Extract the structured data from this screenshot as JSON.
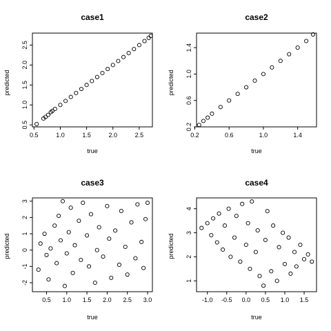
{
  "chart_data": [
    {
      "type": "scatter",
      "title": "case1",
      "xlabel": "true",
      "ylabel": "predicted",
      "xlim": [
        0.47,
        2.75
      ],
      "ylim": [
        0.45,
        2.8
      ],
      "xticks": [
        "0.5",
        "1.0",
        "1.5",
        "2.0",
        "2.5"
      ],
      "yticks": [
        "0.5",
        "1.0",
        "1.5",
        "2.0",
        "2.5"
      ],
      "grid": false,
      "points": [
        {
          "x": 0.55,
          "y": 0.52
        },
        {
          "x": 0.68,
          "y": 0.66
        },
        {
          "x": 0.72,
          "y": 0.7
        },
        {
          "x": 0.77,
          "y": 0.75
        },
        {
          "x": 0.82,
          "y": 0.82
        },
        {
          "x": 0.85,
          "y": 0.85
        },
        {
          "x": 0.9,
          "y": 0.9
        },
        {
          "x": 1.0,
          "y": 1.0
        },
        {
          "x": 1.1,
          "y": 1.1
        },
        {
          "x": 1.2,
          "y": 1.2
        },
        {
          "x": 1.3,
          "y": 1.3
        },
        {
          "x": 1.4,
          "y": 1.4
        },
        {
          "x": 1.5,
          "y": 1.5
        },
        {
          "x": 1.6,
          "y": 1.6
        },
        {
          "x": 1.7,
          "y": 1.7
        },
        {
          "x": 1.8,
          "y": 1.8
        },
        {
          "x": 1.9,
          "y": 1.9
        },
        {
          "x": 2.0,
          "y": 2.0
        },
        {
          "x": 2.1,
          "y": 2.1
        },
        {
          "x": 2.2,
          "y": 2.2
        },
        {
          "x": 2.3,
          "y": 2.3
        },
        {
          "x": 2.4,
          "y": 2.4
        },
        {
          "x": 2.5,
          "y": 2.5
        },
        {
          "x": 2.6,
          "y": 2.6
        },
        {
          "x": 2.68,
          "y": 2.68
        },
        {
          "x": 2.72,
          "y": 2.73
        }
      ]
    },
    {
      "type": "scatter",
      "title": "case2",
      "xlabel": "true",
      "ylabel": "predicted",
      "xlim": [
        0.22,
        1.62
      ],
      "ylim": [
        0.2,
        1.62
      ],
      "xticks": [
        "0.2",
        "0.6",
        "1.0",
        "1.4"
      ],
      "yticks": [
        "0.2",
        "0.6",
        "1.0",
        "1.4"
      ],
      "grid": false,
      "points": [
        {
          "x": 0.25,
          "y": 0.23
        },
        {
          "x": 0.3,
          "y": 0.29
        },
        {
          "x": 0.35,
          "y": 0.34
        },
        {
          "x": 0.4,
          "y": 0.4
        },
        {
          "x": 0.5,
          "y": 0.5
        },
        {
          "x": 0.6,
          "y": 0.6
        },
        {
          "x": 0.7,
          "y": 0.7
        },
        {
          "x": 0.8,
          "y": 0.8
        },
        {
          "x": 0.9,
          "y": 0.9
        },
        {
          "x": 1.0,
          "y": 1.0
        },
        {
          "x": 1.1,
          "y": 1.1
        },
        {
          "x": 1.2,
          "y": 1.2
        },
        {
          "x": 1.3,
          "y": 1.3
        },
        {
          "x": 1.4,
          "y": 1.4
        },
        {
          "x": 1.5,
          "y": 1.5
        },
        {
          "x": 1.58,
          "y": 1.6
        }
      ]
    },
    {
      "type": "scatter",
      "title": "case3",
      "xlabel": "true",
      "ylabel": "predicted",
      "xlim": [
        0.15,
        3.12
      ],
      "ylim": [
        -2.55,
        3.2
      ],
      "xticks": [
        "0.5",
        "1.0",
        "1.5",
        "2.0",
        "2.5",
        "3.0"
      ],
      "yticks": [
        "-2",
        "-1",
        "0",
        "1",
        "2",
        "3"
      ],
      "grid": false,
      "points": [
        {
          "x": 0.3,
          "y": -1.2
        },
        {
          "x": 0.35,
          "y": 0.4
        },
        {
          "x": 0.45,
          "y": 1.0
        },
        {
          "x": 0.5,
          "y": -0.3
        },
        {
          "x": 0.55,
          "y": -1.8
        },
        {
          "x": 0.6,
          "y": 0.1
        },
        {
          "x": 0.7,
          "y": 1.5
        },
        {
          "x": 0.75,
          "y": -0.8
        },
        {
          "x": 0.8,
          "y": 2.1
        },
        {
          "x": 0.85,
          "y": 0.6
        },
        {
          "x": 0.9,
          "y": 3.0
        },
        {
          "x": 0.95,
          "y": -2.2
        },
        {
          "x": 1.0,
          "y": -0.2
        },
        {
          "x": 1.05,
          "y": 1.1
        },
        {
          "x": 1.1,
          "y": 2.6
        },
        {
          "x": 1.15,
          "y": -1.4
        },
        {
          "x": 1.2,
          "y": 0.3
        },
        {
          "x": 1.3,
          "y": 1.8
        },
        {
          "x": 1.35,
          "y": -0.6
        },
        {
          "x": 1.4,
          "y": 2.9
        },
        {
          "x": 1.5,
          "y": 0.9
        },
        {
          "x": 1.55,
          "y": -1.0
        },
        {
          "x": 1.6,
          "y": 2.2
        },
        {
          "x": 1.7,
          "y": -2.0
        },
        {
          "x": 1.75,
          "y": 0.0
        },
        {
          "x": 1.8,
          "y": 1.4
        },
        {
          "x": 1.9,
          "y": -0.4
        },
        {
          "x": 2.0,
          "y": 2.7
        },
        {
          "x": 2.05,
          "y": 0.7
        },
        {
          "x": 2.1,
          "y": -1.7
        },
        {
          "x": 2.2,
          "y": 1.2
        },
        {
          "x": 2.3,
          "y": -0.9
        },
        {
          "x": 2.35,
          "y": 2.4
        },
        {
          "x": 2.45,
          "y": 0.2
        },
        {
          "x": 2.5,
          "y": -1.5
        },
        {
          "x": 2.6,
          "y": 1.7
        },
        {
          "x": 2.7,
          "y": -0.5
        },
        {
          "x": 2.75,
          "y": 2.8
        },
        {
          "x": 2.85,
          "y": 0.5
        },
        {
          "x": 2.9,
          "y": -1.1
        },
        {
          "x": 2.95,
          "y": 1.9
        },
        {
          "x": 3.0,
          "y": 2.9
        }
      ]
    },
    {
      "type": "scatter",
      "title": "case4",
      "xlabel": "true",
      "ylabel": "predicted",
      "xlim": [
        -1.28,
        1.82
      ],
      "ylim": [
        0.55,
        4.45
      ],
      "xticks": [
        "-1.0",
        "-0.5",
        "0.0",
        "0.5",
        "1.0",
        "1.5"
      ],
      "yticks": [
        "1",
        "2",
        "3",
        "4"
      ],
      "grid": false,
      "points": [
        {
          "x": -1.15,
          "y": 3.2
        },
        {
          "x": -1.0,
          "y": 3.4
        },
        {
          "x": -0.9,
          "y": 2.9
        },
        {
          "x": -0.85,
          "y": 3.6
        },
        {
          "x": -0.75,
          "y": 2.6
        },
        {
          "x": -0.7,
          "y": 3.8
        },
        {
          "x": -0.6,
          "y": 2.3
        },
        {
          "x": -0.55,
          "y": 3.3
        },
        {
          "x": -0.45,
          "y": 4.0
        },
        {
          "x": -0.4,
          "y": 2.0
        },
        {
          "x": -0.3,
          "y": 2.8
        },
        {
          "x": -0.25,
          "y": 3.7
        },
        {
          "x": -0.15,
          "y": 1.8
        },
        {
          "x": -0.1,
          "y": 4.2
        },
        {
          "x": 0.0,
          "y": 2.5
        },
        {
          "x": 0.05,
          "y": 3.4
        },
        {
          "x": 0.1,
          "y": 1.5
        },
        {
          "x": 0.15,
          "y": 4.3
        },
        {
          "x": 0.25,
          "y": 2.2
        },
        {
          "x": 0.3,
          "y": 3.1
        },
        {
          "x": 0.35,
          "y": 1.2
        },
        {
          "x": 0.45,
          "y": 0.8
        },
        {
          "x": 0.5,
          "y": 2.7
        },
        {
          "x": 0.55,
          "y": 3.9
        },
        {
          "x": 0.65,
          "y": 1.4
        },
        {
          "x": 0.7,
          "y": 3.3
        },
        {
          "x": 0.8,
          "y": 1.0
        },
        {
          "x": 0.85,
          "y": 2.4
        },
        {
          "x": 0.95,
          "y": 3.0
        },
        {
          "x": 1.0,
          "y": 1.7
        },
        {
          "x": 1.1,
          "y": 2.8
        },
        {
          "x": 1.15,
          "y": 1.3
        },
        {
          "x": 1.25,
          "y": 2.2
        },
        {
          "x": 1.3,
          "y": 1.6
        },
        {
          "x": 1.4,
          "y": 2.5
        },
        {
          "x": 1.5,
          "y": 1.9
        },
        {
          "x": 1.6,
          "y": 2.1
        },
        {
          "x": 1.7,
          "y": 1.8
        }
      ]
    }
  ]
}
